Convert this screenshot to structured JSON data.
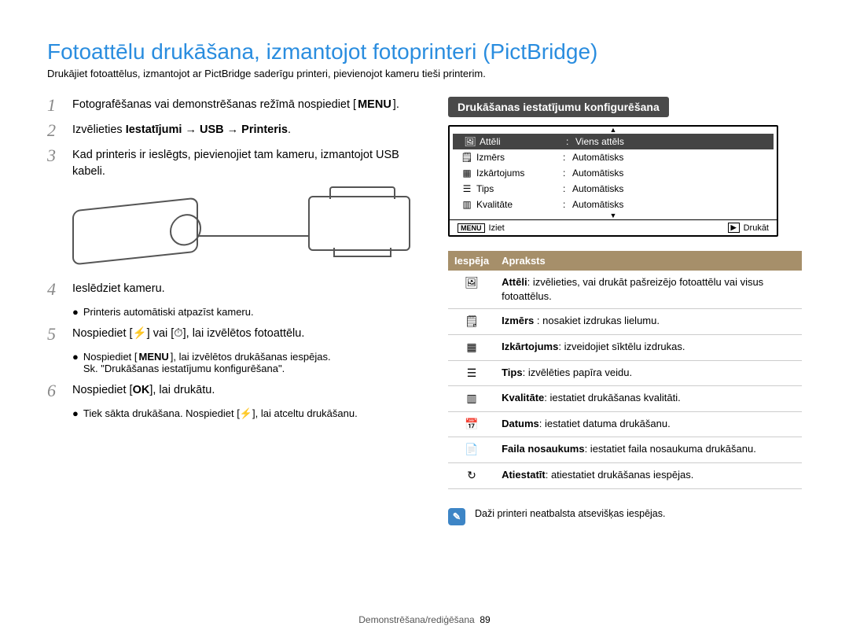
{
  "title": "Fotoattēlu drukāšana, izmantojot fotoprinteri (PictBridge)",
  "subtitle": "Drukājiet fotoattēlus, izmantojot ar PictBridge saderīgu printeri, pievienojot kameru tieši printerim.",
  "colors": {
    "title": "#2a8ddf",
    "step_num": "#888888",
    "right_heading_bg": "#4a4a4a",
    "table_header_bg": "#a68f6a",
    "note_icon_bg": "#3d85c6"
  },
  "steps": {
    "s1": {
      "num": "1",
      "text_a": "Fotografēšanas vai demonstrēšanas režīmā nospiediet",
      "chip": "MENU",
      "text_b": "."
    },
    "s2": {
      "num": "2",
      "prefix": "Izvēlieties ",
      "bold": "Iestatījumi → USB → Printeris",
      "suffix": "."
    },
    "s3": {
      "num": "3",
      "text": "Kad printeris ir ieslēgts, pievienojiet tam kameru, izmantojot USB kabeli."
    },
    "s4": {
      "num": "4",
      "text": "Ieslēdziet kameru.",
      "sub": "Printeris automātiski atpazīst kameru."
    },
    "s5": {
      "num": "5",
      "a": "Nospiediet [",
      "icon1": "⚡",
      "b": "] vai [",
      "icon2": "⏱",
      "c": "], lai izvēlētos fotoattēlu.",
      "sub1_a": "Nospiediet [",
      "sub1_chip": "MENU",
      "sub1_b": "], lai izvēlētos drukāšanas iespējas.",
      "sub2": "Sk. \"Drukāšanas iestatījumu konfigurēšana\"."
    },
    "s6": {
      "num": "6",
      "a": "Nospiediet [",
      "chip": "OK",
      "b": "], lai drukātu.",
      "sub_a": "Tiek sākta drukāšana. Nospiediet [",
      "sub_icon": "⚡",
      "sub_b": "], lai atceltu drukāšanu."
    }
  },
  "right": {
    "heading": "Drukāšanas iestatījumu konfigurēšana",
    "lcd": {
      "rows": [
        {
          "icon": "🖼",
          "label": "Attēli",
          "val": "Viens attēls",
          "hl": true
        },
        {
          "icon": "🗒",
          "label": "Izmērs",
          "val": "Automātisks"
        },
        {
          "icon": "▦",
          "label": "Izkārtojums",
          "val": "Automātisks"
        },
        {
          "icon": "☰",
          "label": "Tips",
          "val": "Automātisks"
        },
        {
          "icon": "▥",
          "label": "Kvalitāte",
          "val": "Automātisks"
        }
      ],
      "foot_left_btn": "MENU",
      "foot_left": "Iziet",
      "foot_right_btn": "▶",
      "foot_right": "Drukāt"
    },
    "table": {
      "h1": "Iespēja",
      "h2": "Apraksts",
      "rows": [
        {
          "icon": "🖼",
          "b": "Attēli",
          "t": ": izvēlieties, vai drukāt pašreizējo fotoattēlu vai visus fotoattēlus."
        },
        {
          "icon": "🗒",
          "b": "Izmērs ",
          "t": ": nosakiet izdrukas lielumu."
        },
        {
          "icon": "▦",
          "b": "Izkārtojums",
          "t": ": izveidojiet sīktēlu izdrukas."
        },
        {
          "icon": "☰",
          "b": "Tips",
          "t": ": izvēlēties papīra veidu."
        },
        {
          "icon": "▥",
          "b": "Kvalitāte",
          "t": ": iestatiet drukāšanas kvalitāti."
        },
        {
          "icon": "📅",
          "b": "Datums",
          "t": ": iestatiet datuma drukāšanu."
        },
        {
          "icon": "📄",
          "b": "Faila nosaukums",
          "t": ": iestatiet faila nosaukuma drukāšanu."
        },
        {
          "icon": "↻",
          "b": "Atiestatīt",
          "t": ": atiestatiet drukāšanas iespējas."
        }
      ]
    },
    "note": "Daži printeri neatbalsta atsevišķas iespējas."
  },
  "footer": {
    "section": "Demonstrēšana/rediģēšana",
    "page": "89"
  }
}
